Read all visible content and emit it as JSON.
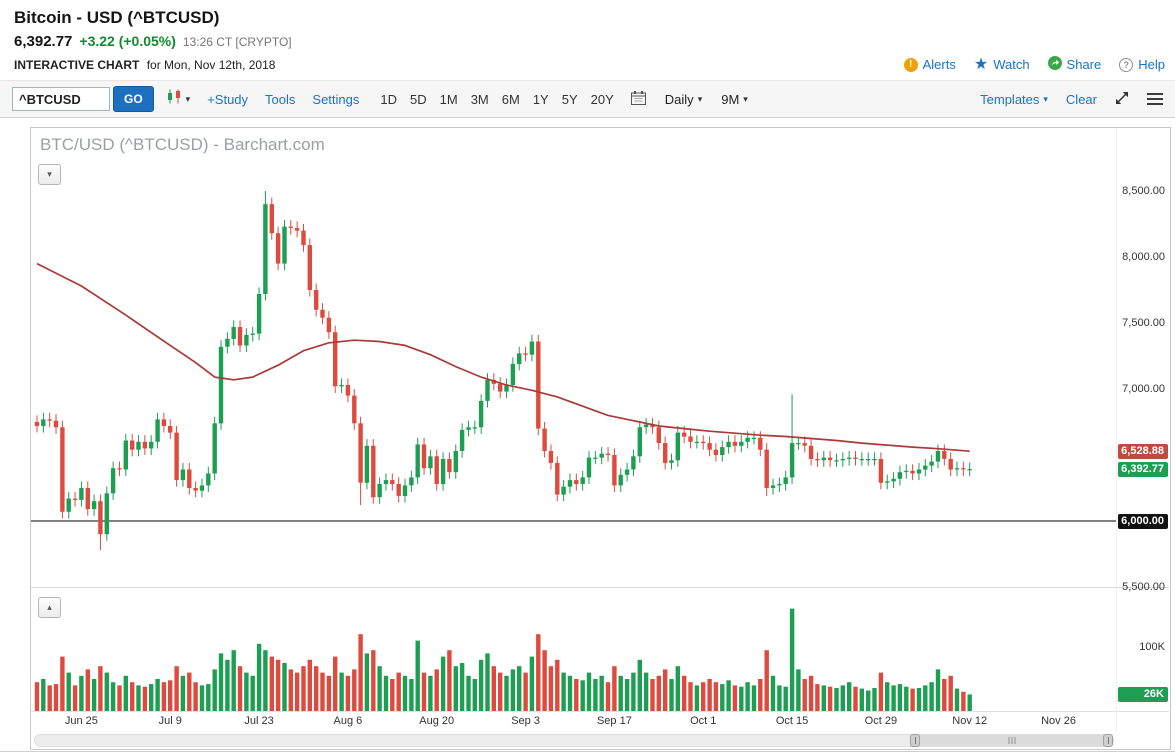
{
  "header": {
    "title": "Bitcoin - USD (^BTCUSD)",
    "price": "6,392.77",
    "change": "+3.22 (+0.05%)",
    "quote_time": "13:26 CT [CRYPTO]",
    "chart_label": "INTERACTIVE CHART",
    "chart_label_suffix": "for Mon, Nov 12th, 2018",
    "links": {
      "alerts": "Alerts",
      "watch": "Watch",
      "share": "Share",
      "help": "Help"
    },
    "alert_glyph": "!",
    "star_glyph": "★",
    "help_glyph": "?"
  },
  "toolbar": {
    "symbol_value": "^BTCUSD",
    "go_label": "GO",
    "caret": "▾",
    "study_label": "+Study",
    "tools_label": "Tools",
    "settings_label": "Settings",
    "ranges": [
      "1D",
      "5D",
      "1M",
      "3M",
      "6M",
      "1Y",
      "5Y",
      "20Y"
    ],
    "frequency": "Daily",
    "span": "9M",
    "templates_label": "Templates",
    "clear_label": "Clear"
  },
  "chart": {
    "watermark": "BTC/USD (^BTCUSD) - Barchart.com",
    "pane_buttons": {
      "price": "▾",
      "volume": "▴"
    },
    "colors": {
      "up": "#1c9e53",
      "down": "#dd4b3e",
      "ma": "#a93a38",
      "support": "#000000"
    },
    "y_labels": [
      {
        "text": "8,500.00",
        "price": 8500
      },
      {
        "text": "8,000.00",
        "price": 8000
      },
      {
        "text": "7,500.00",
        "price": 7500
      },
      {
        "text": "7,000.00",
        "price": 7000
      },
      {
        "text": "5,500.00",
        "price": 5500
      }
    ],
    "badges": [
      {
        "text": "6,528.88",
        "price": 6528.88,
        "bg": "#bd4b42"
      },
      {
        "text": "6,392.77",
        "price": 6392.77,
        "bg": "#1c9e53"
      },
      {
        "text": "6,000.00",
        "price": 6000,
        "bg": "#111111"
      }
    ],
    "volume_labels": [
      {
        "text": "100K",
        "value": 100
      }
    ],
    "volume_badge": {
      "text": "26K",
      "value": 26,
      "bg": "#1c9e53"
    },
    "x_ticks": [
      {
        "label": "Jun 25",
        "i": 7
      },
      {
        "label": "Jul 9",
        "i": 21
      },
      {
        "label": "Jul 23",
        "i": 35
      },
      {
        "label": "Aug 6",
        "i": 49
      },
      {
        "label": "Aug 20",
        "i": 63
      },
      {
        "label": "Sep 3",
        "i": 77
      },
      {
        "label": "Sep 17",
        "i": 91
      },
      {
        "label": "Oct 1",
        "i": 105
      },
      {
        "label": "Oct 15",
        "i": 119
      },
      {
        "label": "Oct 29",
        "i": 133
      },
      {
        "label": "Nov 12",
        "i": 147
      },
      {
        "label": "Nov 26",
        "i": 161
      }
    ]
  },
  "chart_data": {
    "type": "candlestick",
    "symbol": "^BTCUSD",
    "title": "BTC/USD (^BTCUSD) - Barchart.com",
    "frequency": "Daily",
    "x_axis": {
      "start_date": "2018-06-18",
      "last_bar_date": "2018-11-12",
      "axis_end_date": "2018-11-26",
      "tick_labels": [
        "Jun 25",
        "Jul 9",
        "Jul 23",
        "Aug 6",
        "Aug 20",
        "Sep 3",
        "Sep 17",
        "Oct 1",
        "Oct 15",
        "Oct 29",
        "Nov 12",
        "Nov 26"
      ]
    },
    "y_axis": {
      "min": 5500,
      "max": 8500,
      "tick_step": 500,
      "visible_ticks": [
        "8,500.00",
        "8,000.00",
        "7,500.00",
        "7,000.00",
        "5,500.00"
      ]
    },
    "last_price": 6392.77,
    "moving_average_last": 6528.88,
    "support_line": 6000,
    "volume_axis": {
      "tick": "100K",
      "last_volume": "26K"
    },
    "open": [
      6750,
      6720,
      6770,
      6760,
      6710,
      6070,
      6170,
      6160,
      6250,
      6090,
      6150,
      5900,
      6210,
      6400,
      6390,
      6610,
      6540,
      6600,
      6550,
      6600,
      6770,
      6720,
      6670,
      6310,
      6390,
      6250,
      6230,
      6270,
      6360,
      6740,
      7320,
      7380,
      7470,
      7330,
      7410,
      7420,
      7720,
      8400,
      8180,
      7950,
      8230,
      8220,
      8200,
      8090,
      7750,
      7600,
      7540,
      7430,
      7020,
      7030,
      6950,
      6740,
      6290,
      6570,
      6180,
      6280,
      6310,
      6280,
      6190,
      6270,
      6330,
      6580,
      6400,
      6490,
      6280,
      6470,
      6370,
      6530,
      6690,
      6710,
      6710,
      6910,
      7070,
      7040,
      6980,
      7030,
      7190,
      7270,
      7260,
      7360,
      6700,
      6530,
      6440,
      6200,
      6260,
      6310,
      6280,
      6330,
      6480,
      6480,
      6510,
      6500,
      6270,
      6350,
      6390,
      6490,
      6710,
      6730,
      6710,
      6590,
      6440,
      6460,
      6670,
      6640,
      6600,
      6600,
      6590,
      6540,
      6500,
      6560,
      6600,
      6570,
      6600,
      6630,
      6630,
      6540,
      6250,
      6270,
      6280,
      6330,
      6590,
      6590,
      6570,
      6470,
      6460,
      6480,
      6460,
      6460,
      6470,
      6480,
      6470,
      6470,
      6470,
      6470,
      6290,
      6300,
      6320,
      6370,
      6380,
      6360,
      6390,
      6420,
      6450,
      6530,
      6470,
      6390,
      6400,
      6390
    ],
    "high": [
      6800,
      6820,
      6820,
      6810,
      6760,
      6220,
      6220,
      6300,
      6300,
      6200,
      6200,
      6260,
      6450,
      6450,
      6660,
      6660,
      6650,
      6650,
      6650,
      6820,
      6820,
      6770,
      6720,
      6440,
      6440,
      6300,
      6320,
      6410,
      6790,
      7370,
      7430,
      7520,
      7520,
      7460,
      7470,
      7770,
      8500,
      8450,
      8230,
      8280,
      8280,
      8270,
      8250,
      8140,
      7800,
      7650,
      7590,
      7480,
      7080,
      7080,
      7000,
      6790,
      6620,
      6620,
      6330,
      6360,
      6360,
      6330,
      6320,
      6380,
      6630,
      6630,
      6540,
      6540,
      6520,
      6520,
      6580,
      6740,
      6760,
      6760,
      6960,
      7120,
      7120,
      7090,
      7080,
      7240,
      7320,
      7320,
      7410,
      7410,
      6750,
      6580,
      6490,
      6310,
      6360,
      6360,
      6380,
      6530,
      6530,
      6560,
      6560,
      6550,
      6400,
      6440,
      6540,
      6760,
      6780,
      6780,
      6760,
      6640,
      6510,
      6720,
      6720,
      6690,
      6650,
      6650,
      6640,
      6590,
      6610,
      6650,
      6650,
      6650,
      6680,
      6680,
      6680,
      6590,
      6320,
      6330,
      6380,
      6960,
      6640,
      6640,
      6620,
      6520,
      6530,
      6530,
      6510,
      6520,
      6530,
      6530,
      6520,
      6520,
      6520,
      6520,
      6350,
      6370,
      6420,
      6430,
      6430,
      6440,
      6470,
      6500,
      6580,
      6580,
      6520,
      6450,
      6450,
      6443
    ],
    "low": [
      6670,
      6670,
      6710,
      6660,
      6020,
      6020,
      6110,
      6110,
      6040,
      6040,
      5780,
      5850,
      6160,
      6340,
      6340,
      6490,
      6490,
      6500,
      6500,
      6550,
      6670,
      6620,
      6260,
      6260,
      6200,
      6180,
      6180,
      6220,
      6310,
      6690,
      7270,
      7330,
      7280,
      7280,
      7360,
      7370,
      7670,
      8130,
      7900,
      7900,
      8170,
      8150,
      8040,
      7700,
      7550,
      7490,
      7380,
      6970,
      6970,
      6900,
      6690,
      6120,
      6240,
      6130,
      6130,
      6230,
      6230,
      6140,
      6140,
      6220,
      6280,
      6350,
      6350,
      6230,
      6230,
      6320,
      6320,
      6480,
      6640,
      6660,
      6660,
      6860,
      6990,
      6930,
      6930,
      6980,
      7140,
      7210,
      7210,
      6650,
      6480,
      6390,
      6150,
      6150,
      6210,
      6230,
      6230,
      6280,
      6430,
      6430,
      6450,
      6220,
      6220,
      6300,
      6340,
      6440,
      6660,
      6660,
      6540,
      6390,
      6390,
      6410,
      6590,
      6550,
      6550,
      6540,
      6490,
      6450,
      6450,
      6510,
      6520,
      6520,
      6550,
      6580,
      6490,
      6190,
      6200,
      6220,
      6230,
      6280,
      6540,
      6520,
      6420,
      6410,
      6410,
      6410,
      6410,
      6410,
      6420,
      6420,
      6420,
      6420,
      6420,
      6240,
      6240,
      6250,
      6270,
      6320,
      6310,
      6310,
      6340,
      6370,
      6400,
      6420,
      6340,
      6340,
      6340,
      6340
    ],
    "close": [
      6720,
      6770,
      6760,
      6710,
      6070,
      6170,
      6160,
      6250,
      6090,
      6150,
      5900,
      6210,
      6400,
      6390,
      6610,
      6540,
      6600,
      6550,
      6600,
      6770,
      6720,
      6670,
      6310,
      6390,
      6250,
      6230,
      6270,
      6360,
      6740,
      7320,
      7380,
      7470,
      7330,
      7410,
      7420,
      7720,
      8400,
      8180,
      7950,
      8230,
      8220,
      8200,
      8090,
      7750,
      7600,
      7540,
      7430,
      7020,
      7030,
      6950,
      6740,
      6290,
      6570,
      6180,
      6280,
      6310,
      6280,
      6190,
      6270,
      6330,
      6580,
      6400,
      6490,
      6280,
      6470,
      6370,
      6530,
      6690,
      6710,
      6710,
      6910,
      7070,
      7040,
      6980,
      7030,
      7190,
      7270,
      7260,
      7360,
      6700,
      6530,
      6440,
      6200,
      6260,
      6310,
      6280,
      6330,
      6480,
      6480,
      6510,
      6500,
      6270,
      6350,
      6390,
      6490,
      6710,
      6730,
      6710,
      6590,
      6440,
      6460,
      6670,
      6640,
      6600,
      6600,
      6590,
      6540,
      6500,
      6560,
      6600,
      6570,
      6600,
      6630,
      6630,
      6540,
      6250,
      6270,
      6280,
      6330,
      6590,
      6590,
      6570,
      6470,
      6460,
      6480,
      6460,
      6460,
      6470,
      6480,
      6470,
      6470,
      6470,
      6470,
      6290,
      6300,
      6320,
      6370,
      6380,
      6360,
      6390,
      6420,
      6450,
      6530,
      6470,
      6390,
      6400,
      6390,
      6393
    ],
    "volume_k": [
      45,
      50,
      40,
      42,
      85,
      60,
      40,
      55,
      65,
      50,
      70,
      60,
      45,
      40,
      55,
      45,
      40,
      38,
      42,
      50,
      45,
      48,
      70,
      55,
      60,
      45,
      40,
      42,
      65,
      90,
      80,
      95,
      70,
      60,
      55,
      105,
      95,
      85,
      80,
      75,
      65,
      60,
      70,
      80,
      70,
      60,
      55,
      85,
      60,
      55,
      65,
      120,
      90,
      95,
      70,
      55,
      50,
      60,
      55,
      50,
      110,
      60,
      55,
      65,
      85,
      95,
      70,
      75,
      55,
      50,
      80,
      90,
      70,
      60,
      55,
      65,
      70,
      60,
      85,
      120,
      95,
      70,
      80,
      60,
      55,
      50,
      48,
      60,
      50,
      55,
      45,
      70,
      55,
      50,
      60,
      80,
      60,
      50,
      55,
      65,
      50,
      70,
      55,
      45,
      40,
      45,
      50,
      45,
      42,
      48,
      40,
      38,
      45,
      40,
      50,
      95,
      55,
      40,
      38,
      160,
      65,
      50,
      55,
      42,
      40,
      38,
      36,
      40,
      45,
      38,
      35,
      32,
      36,
      60,
      45,
      40,
      42,
      38,
      35,
      36,
      40,
      45,
      65,
      50,
      55,
      35,
      30,
      26
    ],
    "ma_points": [
      [
        0,
        7950
      ],
      [
        7,
        7780
      ],
      [
        14,
        7560
      ],
      [
        21,
        7330
      ],
      [
        25,
        7200
      ],
      [
        28,
        7090
      ],
      [
        31,
        7070
      ],
      [
        34,
        7090
      ],
      [
        38,
        7180
      ],
      [
        42,
        7290
      ],
      [
        46,
        7350
      ],
      [
        50,
        7370
      ],
      [
        54,
        7360
      ],
      [
        58,
        7330
      ],
      [
        62,
        7260
      ],
      [
        66,
        7170
      ],
      [
        70,
        7090
      ],
      [
        74,
        7030
      ],
      [
        78,
        6990
      ],
      [
        82,
        6940
      ],
      [
        86,
        6870
      ],
      [
        90,
        6800
      ],
      [
        94,
        6760
      ],
      [
        98,
        6720
      ],
      [
        102,
        6700
      ],
      [
        106,
        6680
      ],
      [
        110,
        6665
      ],
      [
        114,
        6650
      ],
      [
        118,
        6640
      ],
      [
        122,
        6625
      ],
      [
        126,
        6610
      ],
      [
        130,
        6590
      ],
      [
        134,
        6575
      ],
      [
        138,
        6560
      ],
      [
        142,
        6548
      ],
      [
        147,
        6529
      ]
    ]
  }
}
